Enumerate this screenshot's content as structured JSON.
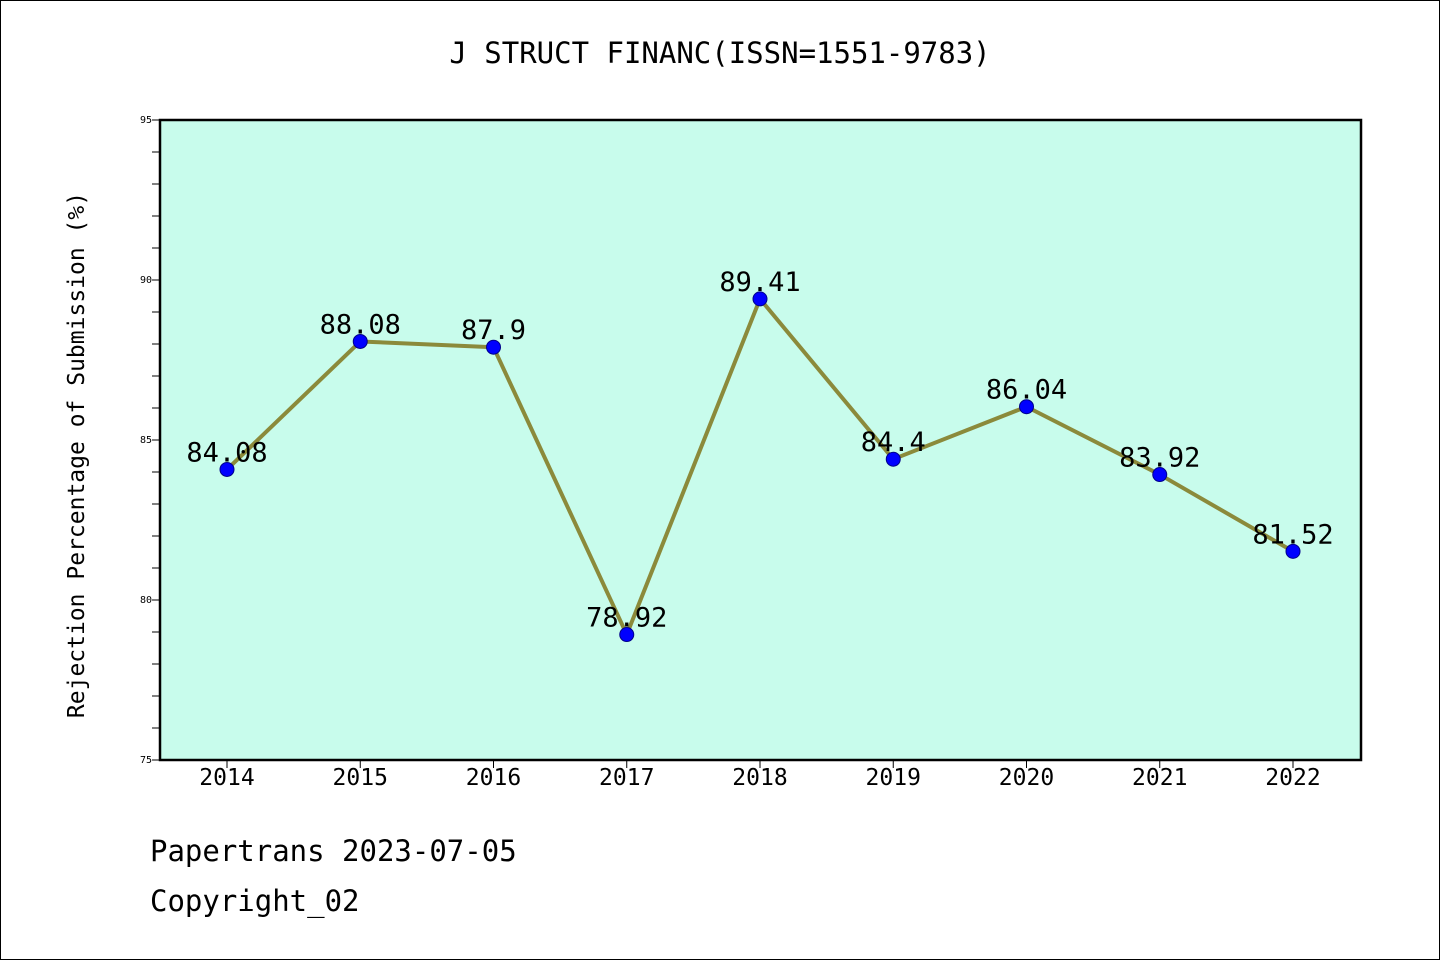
{
  "chart_data": {
    "type": "line",
    "title": "J STRUCT FINANC(ISSN=1551-9783)",
    "xlabel": "",
    "ylabel": "Rejection Percentage of Submission (%)",
    "categories": [
      "2014",
      "2015",
      "2016",
      "2017",
      "2018",
      "2019",
      "2020",
      "2021",
      "2022"
    ],
    "series": [
      {
        "values": [
          84.08,
          88.08,
          87.9,
          78.92,
          89.41,
          84.4,
          86.04,
          83.92,
          81.52
        ],
        "data_labels": [
          "84.08",
          "88.08",
          "87.9",
          "78.92",
          "89.41",
          "84.4",
          "86.04",
          "83.92",
          "81.52"
        ]
      }
    ],
    "ylim": [
      75,
      95
    ],
    "y_ticks": [
      "75",
      "80",
      "85",
      "90",
      "95"
    ],
    "grid": false,
    "colors": {
      "plot_background": "#c8fcec",
      "line": "#8b8a3b",
      "marker": "#0000ff"
    }
  },
  "footer": {
    "line1": "Papertrans 2023-07-05",
    "line2": "Copyright_02"
  }
}
